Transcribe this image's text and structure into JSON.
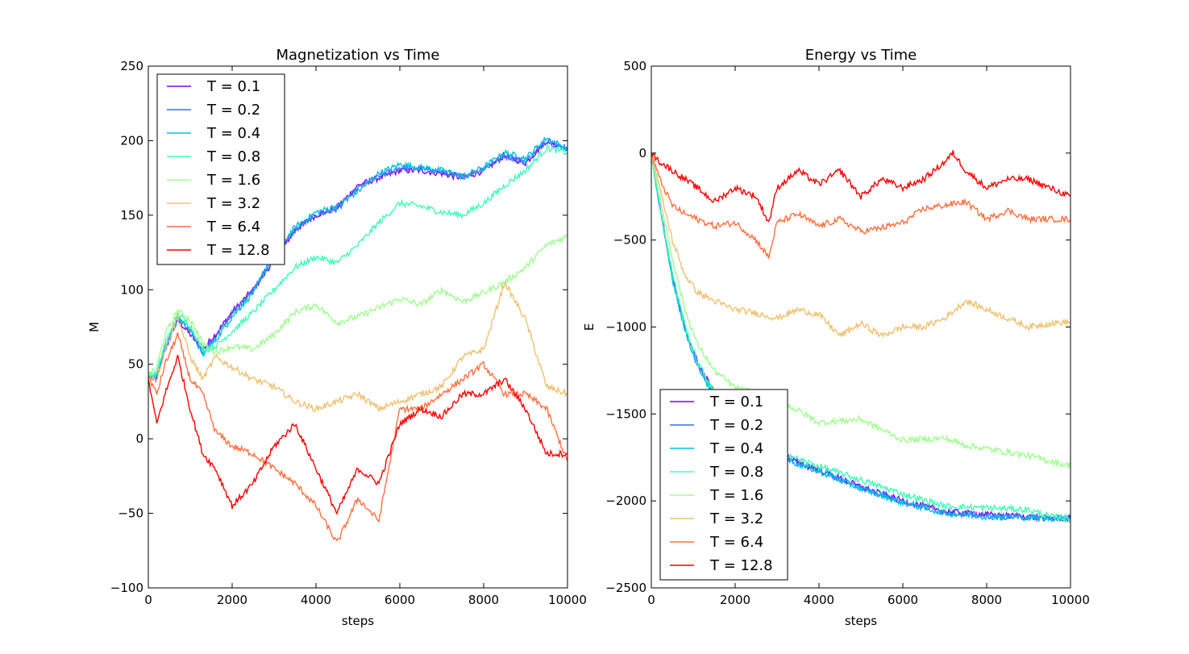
{
  "chart_data": [
    {
      "type": "line",
      "title": "Magnetization vs Time",
      "xlabel": "steps",
      "ylabel": "M",
      "xlim": [
        0,
        10000
      ],
      "ylim": [
        -100,
        250
      ],
      "xticks": [
        0,
        2000,
        4000,
        6000,
        8000,
        10000
      ],
      "yticks": [
        -100,
        -50,
        0,
        50,
        100,
        150,
        200,
        250
      ],
      "grid": false,
      "legend_position": "upper-left",
      "series": [
        {
          "name": "T = 0.1",
          "color": "#8000ff",
          "x": [
            0,
            200,
            400,
            700,
            1000,
            1300,
            1600,
            2000,
            2500,
            3000,
            3500,
            4000,
            4500,
            5000,
            5500,
            6000,
            6500,
            7000,
            7500,
            8000,
            8500,
            9000,
            9500,
            10000
          ],
          "y": [
            42,
            40,
            60,
            80,
            70,
            60,
            70,
            85,
            100,
            120,
            140,
            150,
            155,
            170,
            175,
            180,
            180,
            178,
            175,
            180,
            190,
            185,
            200,
            195
          ]
        },
        {
          "name": "T = 0.2",
          "color": "#3f6ff9",
          "x": [
            0,
            200,
            400,
            700,
            1000,
            1300,
            1600,
            2000,
            2500,
            3000,
            3500,
            4000,
            4500,
            5000,
            5500,
            6000,
            6500,
            7000,
            7500,
            8000,
            8500,
            9000,
            9500,
            10000
          ],
          "y": [
            42,
            41,
            60,
            80,
            72,
            58,
            68,
            84,
            100,
            122,
            140,
            150,
            154,
            168,
            176,
            182,
            181,
            179,
            176,
            181,
            190,
            186,
            200,
            194
          ]
        },
        {
          "name": "T = 0.4",
          "color": "#00c0e1",
          "x": [
            0,
            200,
            400,
            700,
            1000,
            1300,
            1600,
            2000,
            2500,
            3000,
            3500,
            4000,
            4500,
            5000,
            5500,
            6000,
            6500,
            7000,
            7500,
            8000,
            8500,
            9000,
            9500,
            10000
          ],
          "y": [
            43,
            42,
            62,
            82,
            74,
            56,
            66,
            82,
            98,
            124,
            142,
            152,
            156,
            166,
            178,
            184,
            182,
            180,
            176,
            182,
            192,
            188,
            202,
            194
          ]
        },
        {
          "name": "T = 0.8",
          "color": "#40ffb8",
          "x": [
            0,
            200,
            400,
            700,
            1000,
            1300,
            1600,
            2000,
            2500,
            3000,
            3500,
            4000,
            4500,
            5000,
            5500,
            6000,
            6500,
            7000,
            7500,
            8000,
            8500,
            9000,
            9500,
            10000
          ],
          "y": [
            42,
            44,
            64,
            84,
            76,
            60,
            62,
            72,
            85,
            100,
            115,
            122,
            118,
            130,
            145,
            158,
            156,
            152,
            150,
            158,
            170,
            180,
            195,
            192
          ]
        },
        {
          "name": "T = 1.6",
          "color": "#a0ff90",
          "x": [
            0,
            200,
            400,
            700,
            1000,
            1300,
            1600,
            2000,
            2500,
            3000,
            3500,
            4000,
            4500,
            5000,
            5500,
            6000,
            6500,
            7000,
            7500,
            8000,
            8500,
            9000,
            9500,
            10000
          ],
          "y": [
            42,
            48,
            70,
            86,
            80,
            64,
            58,
            62,
            60,
            70,
            85,
            90,
            78,
            82,
            88,
            94,
            90,
            100,
            92,
            98,
            105,
            115,
            130,
            136
          ]
        },
        {
          "name": "T = 3.2",
          "color": "#f0c070",
          "x": [
            0,
            200,
            400,
            700,
            1000,
            1300,
            1600,
            2000,
            2500,
            3000,
            3500,
            4000,
            4500,
            5000,
            5500,
            6000,
            6500,
            7000,
            7500,
            8000,
            8500,
            9000,
            9500,
            10000
          ],
          "y": [
            42,
            40,
            60,
            82,
            55,
            40,
            55,
            48,
            40,
            35,
            25,
            20,
            25,
            30,
            20,
            25,
            30,
            35,
            55,
            60,
            105,
            80,
            35,
            30
          ]
        },
        {
          "name": "T = 6.4",
          "color": "#ff7040",
          "x": [
            0,
            200,
            400,
            700,
            1000,
            1300,
            1600,
            2000,
            2500,
            3000,
            3500,
            4000,
            4500,
            5000,
            5500,
            6000,
            6500,
            7000,
            7500,
            8000,
            8500,
            9000,
            9500,
            10000
          ],
          "y": [
            42,
            30,
            50,
            70,
            40,
            30,
            5,
            -5,
            -10,
            -20,
            -30,
            -45,
            -70,
            -40,
            -55,
            20,
            20,
            30,
            40,
            50,
            30,
            30,
            20,
            -15
          ]
        },
        {
          "name": "T = 12.8",
          "color": "#ff0000",
          "x": [
            0,
            200,
            400,
            700,
            1000,
            1300,
            1600,
            2000,
            2500,
            3000,
            3500,
            4000,
            4500,
            5000,
            5500,
            6000,
            6500,
            7000,
            7500,
            8000,
            8500,
            9000,
            9500,
            10000
          ],
          "y": [
            40,
            10,
            30,
            55,
            20,
            -10,
            -20,
            -45,
            -30,
            -5,
            10,
            -20,
            -50,
            -20,
            -30,
            10,
            20,
            15,
            30,
            30,
            40,
            20,
            -10,
            -10
          ]
        }
      ]
    },
    {
      "type": "line",
      "title": "Energy vs Time",
      "xlabel": "steps",
      "ylabel": "E",
      "xlim": [
        0,
        10000
      ],
      "ylim": [
        -2500,
        500
      ],
      "xticks": [
        0,
        2000,
        4000,
        6000,
        8000,
        10000
      ],
      "yticks": [
        -2500,
        -2000,
        -1500,
        -1000,
        -500,
        0,
        500
      ],
      "grid": false,
      "legend_position": "lower-left",
      "series": [
        {
          "name": "T = 0.1",
          "color": "#8000ff",
          "x": [
            0,
            200,
            500,
            800,
            1100,
            1500,
            2000,
            2500,
            3000,
            3500,
            4000,
            5000,
            6000,
            7000,
            8000,
            9000,
            9500,
            10000
          ],
          "y": [
            0,
            -300,
            -700,
            -1000,
            -1200,
            -1380,
            -1500,
            -1620,
            -1720,
            -1780,
            -1820,
            -1920,
            -2000,
            -2060,
            -2080,
            -2090,
            -2100,
            -2100
          ]
        },
        {
          "name": "T = 0.2",
          "color": "#3f6ff9",
          "x": [
            0,
            200,
            500,
            800,
            1100,
            1500,
            2000,
            2500,
            3000,
            3500,
            4000,
            5000,
            6000,
            7000,
            8000,
            9000,
            9500,
            10000
          ],
          "y": [
            0,
            -310,
            -710,
            -1010,
            -1210,
            -1390,
            -1510,
            -1625,
            -1725,
            -1785,
            -1825,
            -1925,
            -2005,
            -2065,
            -2085,
            -2095,
            -2100,
            -2100
          ]
        },
        {
          "name": "T = 0.4",
          "color": "#00c0e1",
          "x": [
            0,
            200,
            500,
            800,
            1100,
            1500,
            2000,
            2500,
            3000,
            3500,
            4000,
            5000,
            6000,
            7000,
            8000,
            9000,
            9500,
            10000
          ],
          "y": [
            0,
            -320,
            -720,
            -1020,
            -1220,
            -1400,
            -1520,
            -1630,
            -1730,
            -1790,
            -1830,
            -1930,
            -2010,
            -2070,
            -2090,
            -2095,
            -2100,
            -2100
          ]
        },
        {
          "name": "T = 0.8",
          "color": "#40ffb8",
          "x": [
            0,
            200,
            500,
            800,
            1100,
            1500,
            2000,
            2500,
            3000,
            3500,
            4000,
            5000,
            6000,
            7000,
            8000,
            9000,
            9500,
            10000
          ],
          "y": [
            0,
            -300,
            -690,
            -990,
            -1200,
            -1380,
            -1490,
            -1600,
            -1700,
            -1760,
            -1800,
            -1880,
            -1960,
            -2030,
            -2040,
            -2050,
            -2090,
            -2100
          ]
        },
        {
          "name": "T = 1.6",
          "color": "#a0ff90",
          "x": [
            0,
            200,
            500,
            800,
            1100,
            1500,
            2000,
            2500,
            3000,
            3500,
            4000,
            5000,
            6000,
            7000,
            7500,
            8000,
            9000,
            9500,
            10000
          ],
          "y": [
            0,
            -250,
            -600,
            -900,
            -1100,
            -1250,
            -1350,
            -1380,
            -1420,
            -1480,
            -1550,
            -1530,
            -1650,
            -1640,
            -1680,
            -1700,
            -1740,
            -1770,
            -1800
          ]
        },
        {
          "name": "T = 3.2",
          "color": "#f0c070",
          "x": [
            0,
            200,
            500,
            800,
            1100,
            1500,
            2000,
            2500,
            3000,
            3500,
            4000,
            4500,
            5000,
            5500,
            6000,
            6500,
            7000,
            7500,
            8000,
            8500,
            9000,
            9500,
            10000
          ],
          "y": [
            0,
            -200,
            -500,
            -700,
            -800,
            -850,
            -900,
            -920,
            -950,
            -900,
            -930,
            -1050,
            -980,
            -1050,
            -1000,
            -1000,
            -950,
            -850,
            -900,
            -950,
            -1000,
            -980,
            -970
          ]
        },
        {
          "name": "T = 6.4",
          "color": "#ff7040",
          "x": [
            0,
            200,
            500,
            800,
            1100,
            1500,
            2000,
            2500,
            2800,
            3000,
            3500,
            4000,
            4500,
            5000,
            5500,
            6000,
            6500,
            7000,
            7500,
            8000,
            8500,
            9000,
            9500,
            10000
          ],
          "y": [
            0,
            -150,
            -300,
            -350,
            -380,
            -420,
            -400,
            -500,
            -600,
            -400,
            -350,
            -420,
            -380,
            -450,
            -430,
            -400,
            -320,
            -300,
            -280,
            -380,
            -330,
            -380,
            -380,
            -380
          ]
        },
        {
          "name": "T = 12.8",
          "color": "#ff0000",
          "x": [
            0,
            200,
            500,
            800,
            1100,
            1500,
            2000,
            2500,
            2800,
            3000,
            3500,
            4000,
            4500,
            5000,
            5500,
            6000,
            6500,
            7000,
            7200,
            7500,
            8000,
            8500,
            9000,
            9500,
            10000
          ],
          "y": [
            0,
            -50,
            -100,
            -150,
            -200,
            -280,
            -200,
            -250,
            -400,
            -200,
            -100,
            -180,
            -100,
            -250,
            -150,
            -200,
            -150,
            -50,
            0,
            -100,
            -200,
            -150,
            -150,
            -200,
            -250
          ]
        }
      ]
    }
  ]
}
